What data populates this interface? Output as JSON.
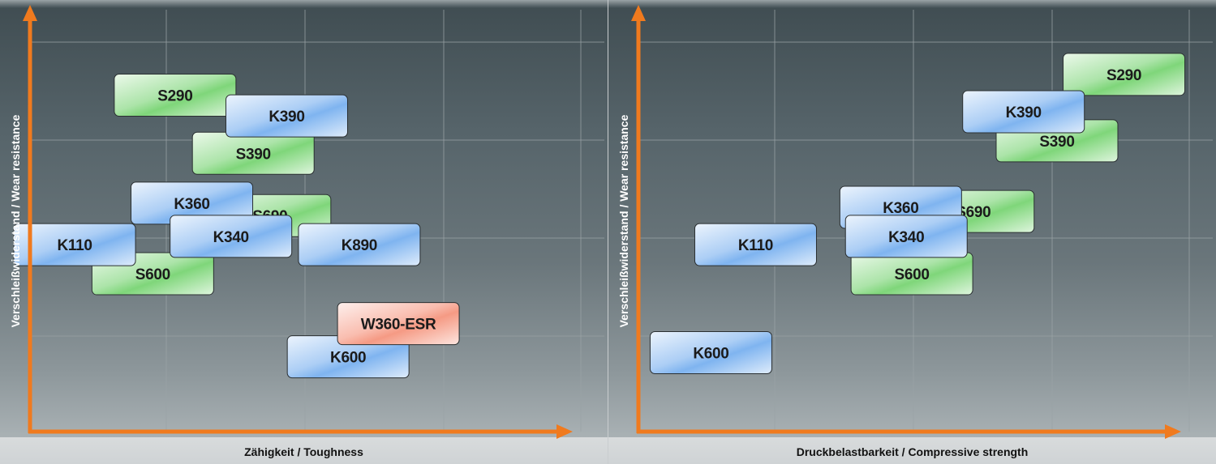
{
  "chart_data": [
    {
      "type": "scatter",
      "title": "",
      "xlabel": "Zähigkeit / Toughness",
      "ylabel": "Verschleißwiderstand / Wear resistance",
      "xlim": [
        0,
        10
      ],
      "ylim": [
        0,
        10
      ],
      "grid": true,
      "axis_tick_labels": false,
      "series": [
        {
          "name": "",
          "color": "#7fd67a",
          "points": [
            {
              "label": "S290",
              "x": 2.6,
              "y": 8.1
            },
            {
              "label": "S390",
              "x": 4.0,
              "y": 6.7
            },
            {
              "label": "S690",
              "x": 4.3,
              "y": 5.2
            },
            {
              "label": "S600",
              "x": 2.2,
              "y": 3.8
            }
          ]
        },
        {
          "name": "",
          "color": "#7fb4f0",
          "points": [
            {
              "label": "K390",
              "x": 4.6,
              "y": 7.6
            },
            {
              "label": "K360",
              "x": 2.9,
              "y": 5.5
            },
            {
              "label": "K340",
              "x": 3.6,
              "y": 4.7
            },
            {
              "label": "K110",
              "x": 0.8,
              "y": 4.5
            },
            {
              "label": "K890",
              "x": 5.9,
              "y": 4.5
            },
            {
              "label": "K600",
              "x": 5.7,
              "y": 1.8
            }
          ]
        },
        {
          "name": "",
          "color": "#f59a84",
          "points": [
            {
              "label": "W360-ESR",
              "x": 6.6,
              "y": 2.6
            }
          ]
        }
      ]
    },
    {
      "type": "scatter",
      "title": "",
      "xlabel": "Druckbelastbarkeit / Compressive strength",
      "ylabel": "Verschleißwiderstand / Wear resistance",
      "xlim": [
        0,
        10
      ],
      "ylim": [
        0,
        10
      ],
      "grid": true,
      "axis_tick_labels": false,
      "series": [
        {
          "name": "",
          "color": "#7fd67a",
          "points": [
            {
              "label": "S290",
              "x": 8.7,
              "y": 8.6
            },
            {
              "label": "S390",
              "x": 7.5,
              "y": 7.0
            },
            {
              "label": "S690",
              "x": 6.0,
              "y": 5.3
            },
            {
              "label": "S600",
              "x": 4.9,
              "y": 3.8
            }
          ]
        },
        {
          "name": "",
          "color": "#7fb4f0",
          "points": [
            {
              "label": "K390",
              "x": 6.9,
              "y": 7.7
            },
            {
              "label": "K360",
              "x": 4.7,
              "y": 5.4
            },
            {
              "label": "K340",
              "x": 4.8,
              "y": 4.7
            },
            {
              "label": "K110",
              "x": 2.1,
              "y": 4.5
            },
            {
              "label": "K600",
              "x": 1.3,
              "y": 1.9
            }
          ]
        }
      ]
    }
  ]
}
